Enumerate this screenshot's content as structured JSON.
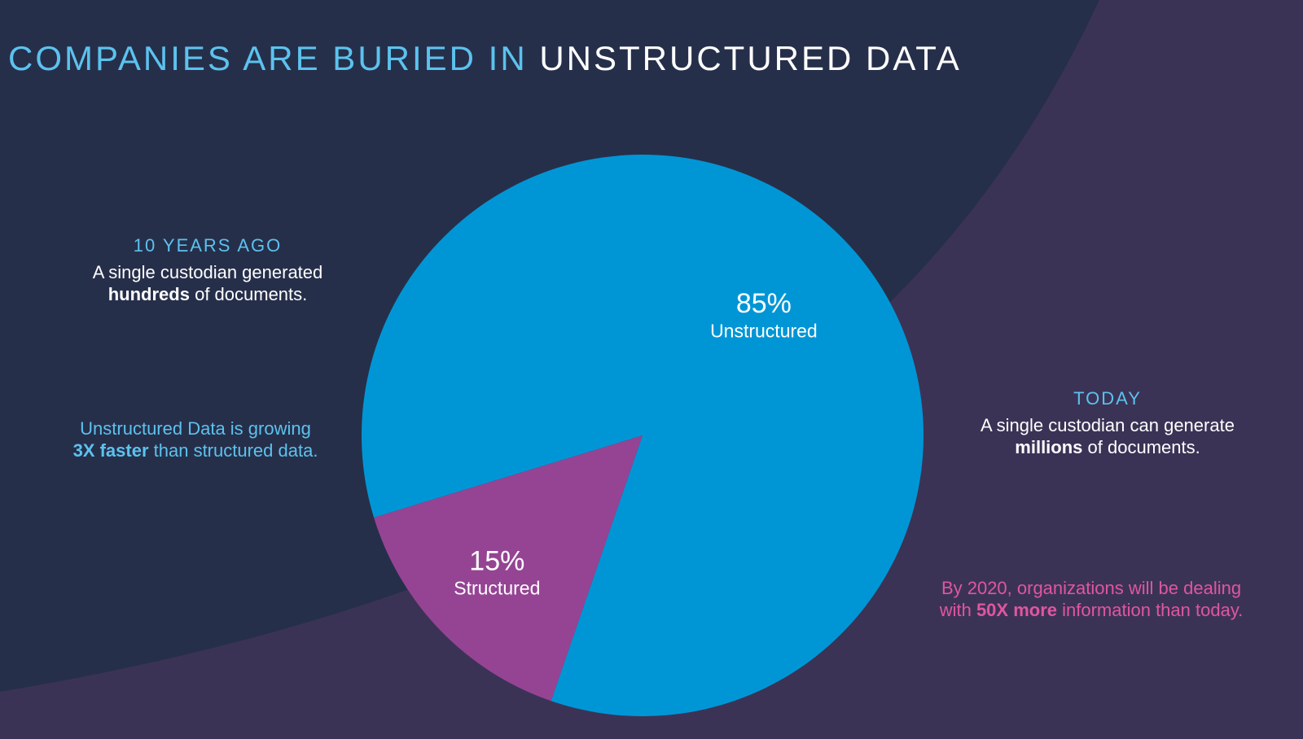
{
  "chart_data": {
    "type": "pie",
    "title": {
      "lead": "COMPANIES ARE BURIED IN",
      "emphasis": "UNSTRUCTURED DATA"
    },
    "categories": [
      "Unstructured",
      "Structured"
    ],
    "values": [
      85,
      15
    ],
    "value_labels": [
      "85%",
      "15%"
    ],
    "colors": [
      "#0096d6",
      "#954493"
    ]
  },
  "left": {
    "heading": "10 YEARS AGO",
    "text": {
      "before": "A single custodian generated",
      "bold": "hundreds",
      "after": "of documents."
    },
    "note": {
      "before": "Unstructured Data is growing",
      "bold": "3X faster",
      "after": "than structured data."
    }
  },
  "right": {
    "heading": "TODAY",
    "text": {
      "before": "A single custodian can generate",
      "bold": "millions",
      "after": "of documents."
    },
    "note": {
      "before": "By 2020, organizations will be dealing",
      "lead": "with",
      "bold": "50X more",
      "after": "information than today."
    }
  }
}
